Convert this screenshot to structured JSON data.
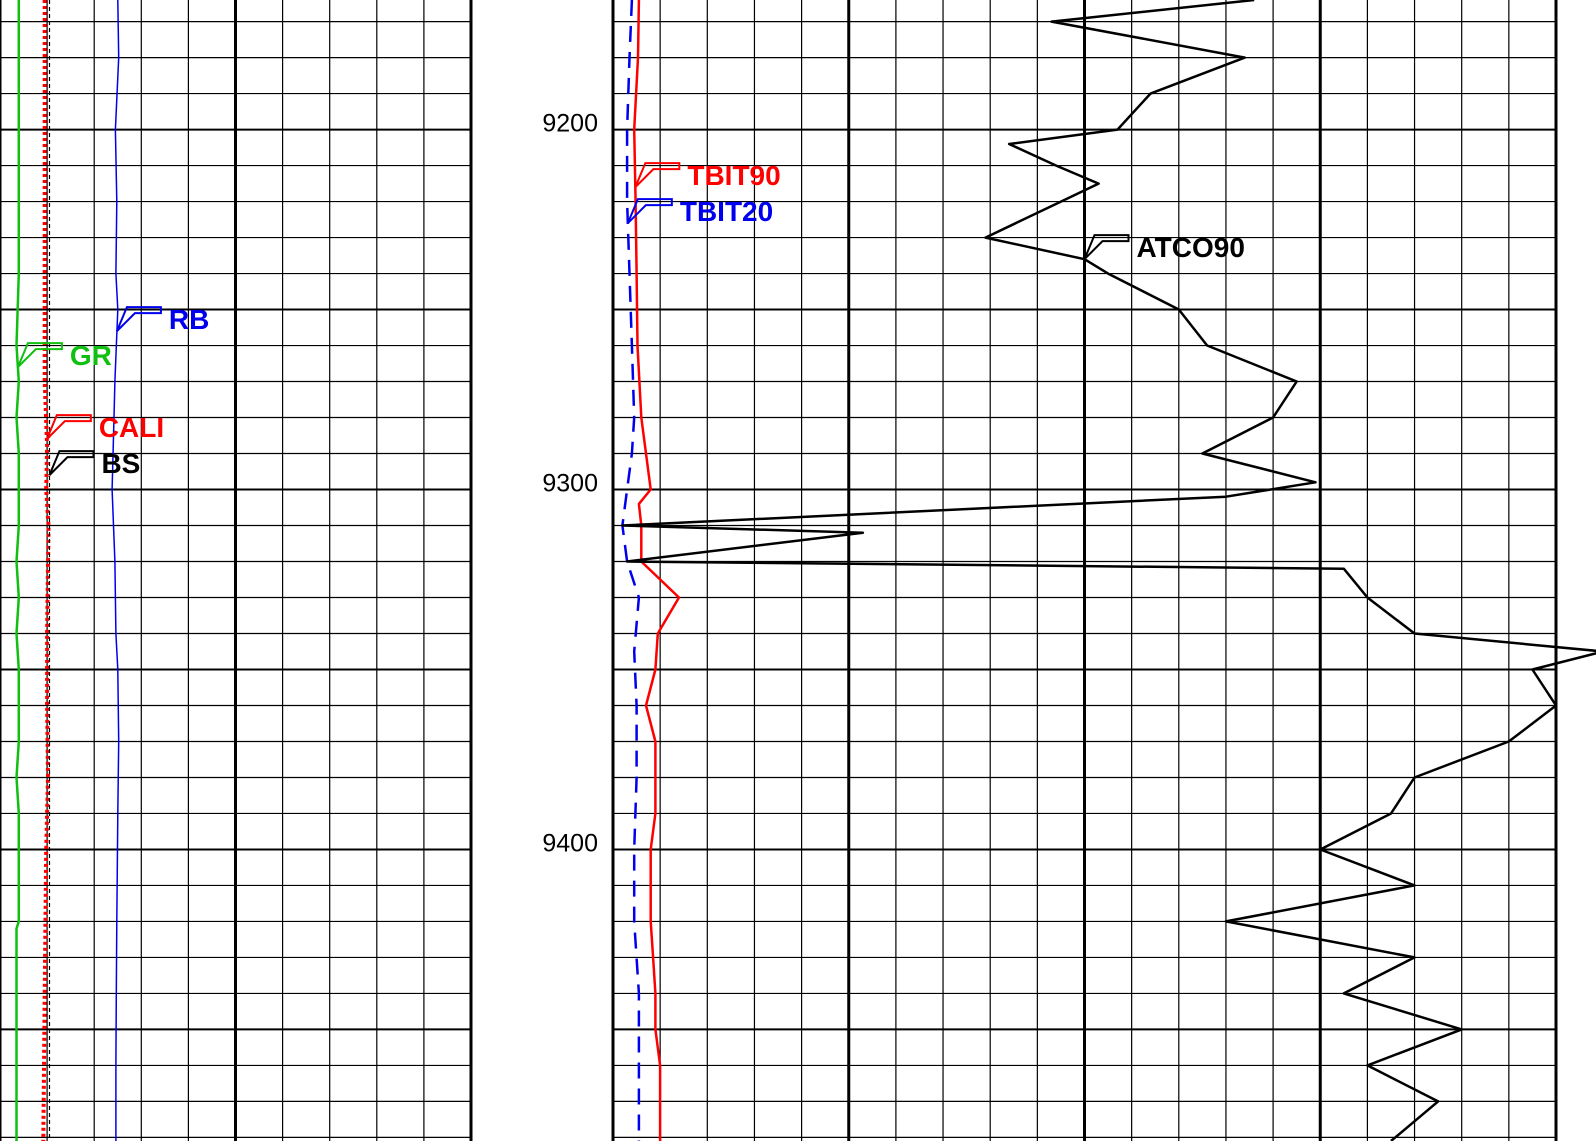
{
  "chart_data": {
    "type": "line",
    "title": "",
    "depth_axis": {
      "tick_labels": [
        "9200",
        "9300",
        "9400"
      ],
      "ylim": [
        9164,
        9481
      ],
      "major_every": 50,
      "minor_every": 10
    },
    "tracks": [
      {
        "id": "track1",
        "grid": "linear",
        "minor_divisions": 10,
        "major_divisions": [
          5,
          10
        ]
      },
      {
        "id": "track2",
        "grid": "linear",
        "minor_divisions": 20,
        "major_divisions": [
          5,
          10,
          15,
          20
        ]
      }
    ],
    "series": [
      {
        "name": "GR",
        "track": "track1",
        "color": "#10c010",
        "style": "solid",
        "depth": [
          9164,
          9180,
          9200,
          9220,
          9240,
          9260,
          9270,
          9280,
          9290,
          9300,
          9310,
          9320,
          9330,
          9340,
          9350,
          9360,
          9370,
          9380,
          9390,
          9400,
          9410,
          9420,
          9422,
          9440,
          9460,
          9481
        ],
        "values": [
          0.4,
          0.4,
          0.4,
          0.4,
          0.4,
          0.35,
          0.4,
          0.35,
          0.4,
          0.4,
          0.4,
          0.35,
          0.4,
          0.35,
          0.4,
          0.4,
          0.4,
          0.35,
          0.4,
          0.4,
          0.4,
          0.4,
          0.35,
          0.35,
          0.35,
          0.35
        ],
        "label_at_depth": 9266
      },
      {
        "name": "CALI",
        "track": "track1",
        "color": "#ff0000",
        "style": "dotted",
        "depth": [
          9164,
          9200,
          9240,
          9270,
          9288,
          9300,
          9310,
          9340,
          9360,
          9380,
          9400,
          9440,
          9481
        ],
        "values": [
          0.95,
          0.95,
          0.95,
          0.95,
          1.0,
          0.98,
          1.03,
          1.0,
          1.0,
          1.02,
          0.98,
          0.95,
          0.92
        ],
        "label_at_depth": 9286
      },
      {
        "name": "BS",
        "track": "track1",
        "color": "#000000",
        "style": "dashed",
        "depth": [
          9164,
          9481
        ],
        "values": [
          1.05,
          1.05
        ],
        "label_at_depth": 9296
      },
      {
        "name": "RB",
        "track": "track1",
        "color": "#0000ee",
        "style": "solid",
        "depth": [
          9164,
          9180,
          9200,
          9220,
          9240,
          9250,
          9270,
          9280,
          9300,
          9320,
          9340,
          9350,
          9370,
          9390,
          9420,
          9440,
          9460,
          9481
        ],
        "values": [
          2.5,
          2.52,
          2.45,
          2.48,
          2.46,
          2.5,
          2.44,
          2.42,
          2.38,
          2.44,
          2.46,
          2.5,
          2.52,
          2.5,
          2.48,
          2.47,
          2.46,
          2.46
        ],
        "label_at_depth": 9256
      },
      {
        "name": "TBIT90",
        "track": "track2",
        "color": "#ff0000",
        "style": "solid",
        "depth": [
          9164,
          9180,
          9200,
          9220,
          9240,
          9260,
          9280,
          9300,
          9304,
          9310,
          9320,
          9330,
          9340,
          9350,
          9360,
          9370,
          9380,
          9390,
          9400,
          9410,
          9420,
          9430,
          9440,
          9450,
          9460,
          9470,
          9481
        ],
        "values": [
          0.55,
          0.53,
          0.45,
          0.48,
          0.5,
          0.52,
          0.6,
          0.8,
          0.55,
          0.6,
          0.6,
          1.4,
          0.95,
          0.9,
          0.7,
          0.9,
          0.9,
          0.9,
          0.8,
          0.8,
          0.8,
          0.85,
          0.9,
          0.9,
          1.0,
          1.0,
          1.0
        ],
        "label_at_depth": 9216
      },
      {
        "name": "TBIT20",
        "track": "track2",
        "color": "#0000ee",
        "style": "dashed",
        "depth": [
          9164,
          9180,
          9200,
          9210,
          9220,
          9240,
          9260,
          9280,
          9290,
          9300,
          9310,
          9320,
          9330,
          9345,
          9360,
          9380,
          9400,
          9420,
          9440,
          9460,
          9481
        ],
        "values": [
          0.4,
          0.35,
          0.3,
          0.3,
          0.3,
          0.35,
          0.4,
          0.45,
          0.4,
          0.3,
          0.2,
          0.3,
          0.55,
          0.45,
          0.5,
          0.5,
          0.45,
          0.45,
          0.55,
          0.55,
          0.55
        ],
        "label_at_depth": 9226
      },
      {
        "name": "ATCO90",
        "track": "track2",
        "color": "#000000",
        "style": "solid",
        "depth": [
          9164,
          9170,
          9180,
          9190,
          9200,
          9204,
          9210,
          9215,
          9220,
          9230,
          9236,
          9240,
          9250,
          9260,
          9270,
          9280,
          9290,
          9298,
          9302,
          9310,
          9312,
          9320,
          9322,
          9330,
          9340,
          9345,
          9350,
          9360,
          9370,
          9380,
          9390,
          9400,
          9410,
          9420,
          9430,
          9440,
          9450,
          9460,
          9470,
          9481
        ],
        "values": [
          13.6,
          9.3,
          13.4,
          11.4,
          10.7,
          8.4,
          9.4,
          10.3,
          9.5,
          7.9,
          10.0,
          10.5,
          12.0,
          12.6,
          14.5,
          14.0,
          12.5,
          14.9,
          13.0,
          0.2,
          5.3,
          0.3,
          15.5,
          16.0,
          17.0,
          21.0,
          19.5,
          20.0,
          19.0,
          17.0,
          16.5,
          15.0,
          17.0,
          13.0,
          17.0,
          15.5,
          18.0,
          16.0,
          17.5,
          16.5
        ],
        "label_at_depth": 9236
      }
    ]
  }
}
